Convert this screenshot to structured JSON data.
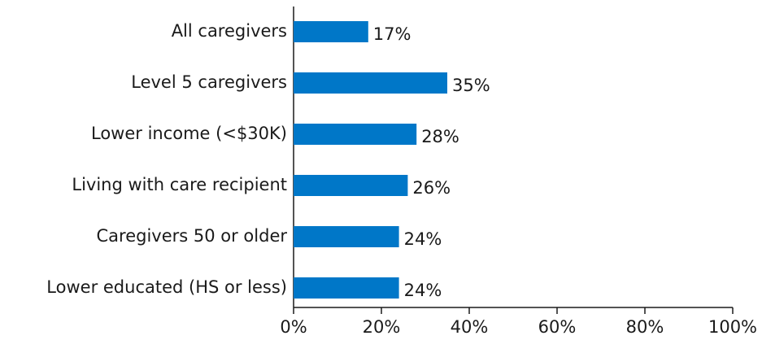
{
  "chart_data": {
    "type": "barh",
    "categories": [
      "All caregivers",
      "Level 5 caregivers",
      "Lower income (<$30K)",
      "Living with care recipient",
      "Caregivers 50 or older",
      "Lower educated (HS or less)"
    ],
    "values": [
      17,
      35,
      28,
      26,
      24,
      24
    ],
    "value_labels": [
      "17%",
      "35%",
      "28%",
      "26%",
      "24%",
      "24%"
    ],
    "color": "#0077c8",
    "xlim": [
      0,
      100
    ],
    "xticks": [
      {
        "value": 0,
        "label": "0%"
      },
      {
        "value": 20,
        "label": "20%"
      },
      {
        "value": 40,
        "label": "40%"
      },
      {
        "value": 60,
        "label": "60%"
      },
      {
        "value": 80,
        "label": "80%"
      },
      {
        "value": 100,
        "label": "100%"
      }
    ]
  }
}
